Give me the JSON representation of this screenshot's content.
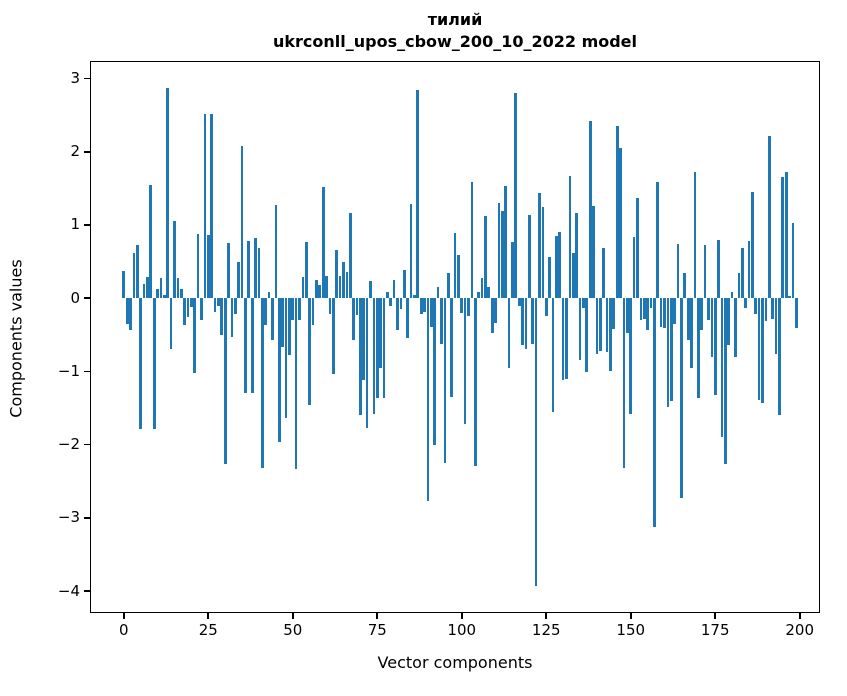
{
  "figure": {
    "title_line1": "тилий",
    "title_line2": "ukrconll_upos_cbow_200_10_2022 model",
    "background": "#ffffff",
    "spine_color": "#000000"
  },
  "chart_data": {
    "type": "bar",
    "title": "тилий",
    "subtitle": "ukrconll_upos_cbow_200_10_2022 model",
    "xlabel": "Vector components",
    "ylabel": "Components values",
    "bar_color": "#1f77b4",
    "bar_width": 0.8,
    "grid": false,
    "legend": null,
    "xlim": [
      -10,
      206
    ],
    "ylim": [
      -4.3,
      3.24
    ],
    "x_ticks": [
      0,
      25,
      50,
      75,
      100,
      125,
      150,
      175,
      200
    ],
    "y_ticks": [
      3,
      2,
      1,
      0,
      -1,
      -2,
      -3,
      -4
    ],
    "y_tick_labels": [
      "3",
      "2",
      "1",
      "0",
      "−1",
      "−2",
      "−3",
      "−4"
    ],
    "x_start": 0,
    "values": [
      0.37,
      -0.35,
      -0.43,
      0.62,
      0.72,
      -1.79,
      0.2,
      0.29,
      1.54,
      -1.79,
      0.13,
      0.27,
      0.05,
      2.87,
      -0.7,
      1.05,
      0.28,
      0.12,
      -0.37,
      -0.26,
      -0.12,
      -1.02,
      0.88,
      -0.3,
      2.51,
      0.86,
      2.52,
      -0.19,
      -0.1,
      -0.5,
      -2.26,
      0.76,
      -0.53,
      -0.21,
      0.5,
      2.08,
      -1.3,
      0.78,
      -1.3,
      0.82,
      0.68,
      -2.32,
      -0.37,
      0.08,
      -0.57,
      1.27,
      -1.96,
      -0.67,
      -1.64,
      -0.78,
      -0.3,
      -2.33,
      -0.3,
      0.29,
      0.77,
      -1.46,
      -0.37,
      0.25,
      0.18,
      1.52,
      0.3,
      -0.22,
      -1.04,
      0.66,
      0.31,
      0.5,
      0.36,
      1.16,
      -0.57,
      -0.23,
      -1.6,
      -1.12,
      -1.77,
      0.24,
      -1.58,
      -1.36,
      -0.95,
      -1.36,
      0.09,
      -0.1,
      0.25,
      -0.44,
      -0.15,
      0.38,
      -0.55,
      1.29,
      0.05,
      2.85,
      -0.21,
      -0.19,
      -2.77,
      -0.39,
      -2.0,
      0.15,
      -0.62,
      -2.25,
      0.35,
      -1.35,
      0.89,
      0.59,
      -0.2,
      -1.72,
      -0.25,
      1.59,
      -2.29,
      0.09,
      0.27,
      1.12,
      0.15,
      -0.48,
      -0.34,
      1.3,
      1.19,
      1.53,
      -0.96,
      0.77,
      2.8,
      -0.1,
      -0.64,
      -0.69,
      1.13,
      -0.62,
      -3.93,
      1.44,
      1.25,
      -0.25,
      0.56,
      -1.55,
      0.85,
      0.9,
      -1.12,
      -1.1,
      1.67,
      0.62,
      1.16,
      -0.85,
      -0.13,
      -1.01,
      2.42,
      1.26,
      -0.76,
      -0.72,
      0.69,
      -0.73,
      -1.0,
      -0.42,
      2.35,
      2.05,
      -2.32,
      -0.48,
      -1.58,
      0.83,
      1.37,
      -0.3,
      -0.28,
      -0.44,
      -0.13,
      -3.13,
      1.59,
      -0.39,
      -0.41,
      -1.48,
      -1.41,
      -0.35,
      0.74,
      -2.73,
      0.34,
      -0.57,
      -0.96,
      1.73,
      -1.37,
      -0.44,
      0.72,
      -0.3,
      -0.8,
      -1.32,
      0.79,
      -1.89,
      -2.27,
      -0.64,
      0.09,
      -0.8,
      0.35,
      0.68,
      -0.14,
      0.78,
      1.45,
      -0.21,
      -1.39,
      -1.43,
      -0.31,
      2.22,
      -0.28,
      -0.76,
      -1.6,
      1.66,
      1.72,
      0.03,
      1.03,
      -0.41
    ]
  }
}
